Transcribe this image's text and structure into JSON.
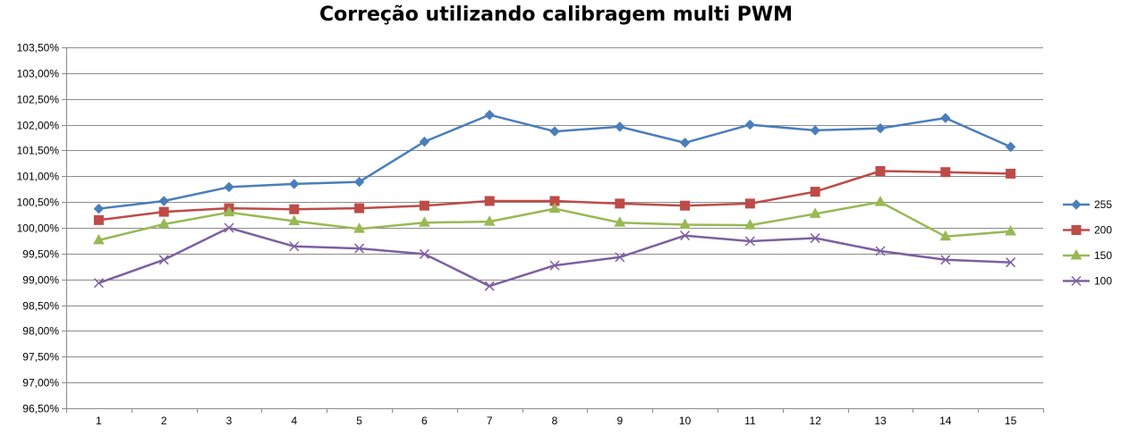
{
  "chart_data": {
    "type": "line",
    "title": "Correção utilizando calibragem multi PWM",
    "xlabel": "",
    "ylabel": "",
    "categories": [
      "1",
      "2",
      "3",
      "4",
      "5",
      "6",
      "7",
      "8",
      "9",
      "10",
      "11",
      "12",
      "13",
      "14",
      "15"
    ],
    "ylim": [
      96.5,
      103.5
    ],
    "ystep": 0.5,
    "y_tick_labels": [
      "96,50%",
      "97,00%",
      "97,50%",
      "98,00%",
      "98,50%",
      "99,00%",
      "99,50%",
      "100,00%",
      "100,50%",
      "101,00%",
      "101,50%",
      "102,00%",
      "102,50%",
      "103,00%",
      "103,50%"
    ],
    "grid": true,
    "legend_position": "right",
    "series": [
      {
        "name": "255",
        "color": "#4a7ebb",
        "marker": "diamond",
        "values": [
          100.37,
          100.52,
          100.79,
          100.85,
          100.89,
          101.67,
          102.19,
          101.87,
          101.96,
          101.65,
          102.0,
          101.89,
          101.93,
          102.13,
          101.57
        ]
      },
      {
        "name": "200",
        "color": "#be4b48",
        "marker": "square",
        "values": [
          100.15,
          100.31,
          100.38,
          100.36,
          100.38,
          100.43,
          100.52,
          100.52,
          100.47,
          100.43,
          100.47,
          100.7,
          101.1,
          101.08,
          101.05
        ]
      },
      {
        "name": "150",
        "color": "#98b954",
        "marker": "triangle",
        "values": [
          99.76,
          100.07,
          100.3,
          100.13,
          99.98,
          100.1,
          100.12,
          100.37,
          100.1,
          100.06,
          100.05,
          100.27,
          100.5,
          99.83,
          99.93
        ]
      },
      {
        "name": "100",
        "color": "#7d60a0",
        "marker": "x",
        "values": [
          98.93,
          99.38,
          100.0,
          99.64,
          99.6,
          99.49,
          98.87,
          99.27,
          99.43,
          99.85,
          99.74,
          99.8,
          99.55,
          99.38,
          99.33
        ]
      }
    ]
  }
}
